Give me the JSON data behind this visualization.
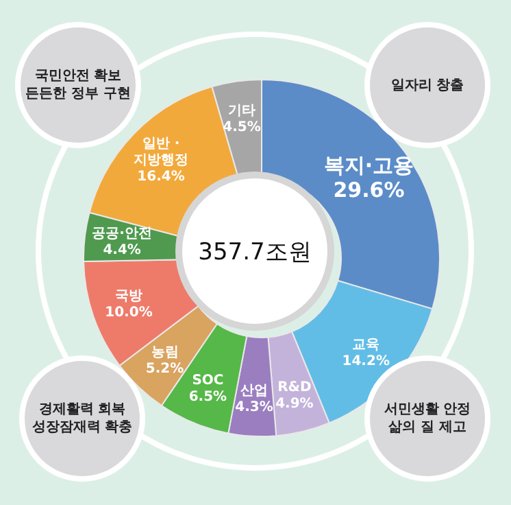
{
  "chart_data": {
    "type": "donut",
    "title": "357.7조원",
    "categories": [
      "복지·고용",
      "교육",
      "R&D",
      "산업",
      "SOC",
      "농림",
      "국방",
      "공공·안전",
      "일반 ·\n지방행정",
      "기타"
    ],
    "values": [
      29.6,
      14.2,
      4.9,
      4.3,
      6.5,
      5.2,
      10.0,
      4.4,
      16.4,
      4.5
    ],
    "value_labels": [
      "29.6%",
      "14.2%",
      "4.9%",
      "4.3%",
      "6.5%",
      "5.2%",
      "10.0%",
      "4.4%",
      "16.4%",
      "4.5%"
    ],
    "colors": [
      "#5b8cc8",
      "#62bde6",
      "#c3b3da",
      "#9a7ec0",
      "#55b848",
      "#d9a360",
      "#ee7b6a",
      "#4f9a4f",
      "#f2a93b",
      "#a6a6a6"
    ],
    "annotations": [
      "국민안전 확보\n든든한 정부 구현",
      "일자리 창출",
      "경제활력 회복\n성장잠재력 확충",
      "서민생활 안정\n삶의 질 제고"
    ],
    "legend": false
  }
}
